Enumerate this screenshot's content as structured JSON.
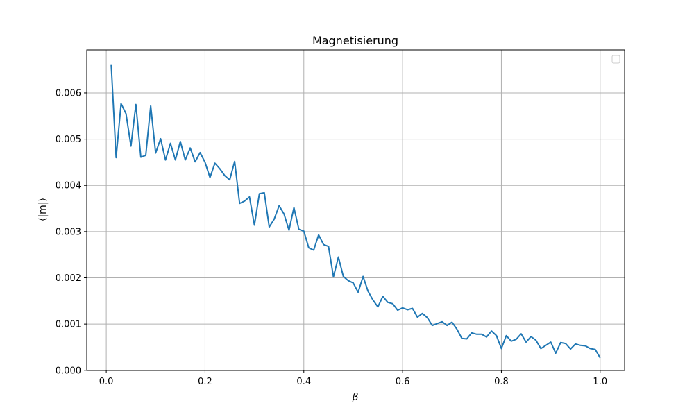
{
  "chart_data": {
    "type": "line",
    "title": "Magnetisierung",
    "xlabel": "β",
    "ylabel": "⟨|m|⟩",
    "xlim": [
      -0.0395,
      1.0495
    ],
    "ylim": [
      -3.5e-06,
      0.00693
    ],
    "xticks": [
      0.0,
      0.2,
      0.4,
      0.6,
      0.8,
      1.0
    ],
    "xtick_labels": [
      "0.0",
      "0.2",
      "0.4",
      "0.6",
      "0.8",
      "1.0"
    ],
    "yticks": [
      0.0,
      0.001,
      0.002,
      0.003,
      0.004,
      0.005,
      0.006
    ],
    "ytick_labels": [
      "0.000",
      "0.001",
      "0.002",
      "0.003",
      "0.004",
      "0.005",
      "0.006"
    ],
    "grid": true,
    "legend": "top-right (empty)",
    "color": "#1f77b4",
    "series": [
      {
        "x": [
          0.01,
          0.02,
          0.03,
          0.04,
          0.05,
          0.06,
          0.07,
          0.08,
          0.09,
          0.1,
          0.11,
          0.12,
          0.13,
          0.14,
          0.15,
          0.16,
          0.17,
          0.18,
          0.19,
          0.2,
          0.21,
          0.22,
          0.23,
          0.24,
          0.25,
          0.26,
          0.27,
          0.28,
          0.29,
          0.3,
          0.31,
          0.32,
          0.33,
          0.34,
          0.35,
          0.36,
          0.37,
          0.38,
          0.39,
          0.4,
          0.41,
          0.42,
          0.43,
          0.44,
          0.45,
          0.46,
          0.47,
          0.48,
          0.49,
          0.5,
          0.51,
          0.52,
          0.53,
          0.54,
          0.55,
          0.56,
          0.57,
          0.58,
          0.59,
          0.6,
          0.61,
          0.62,
          0.63,
          0.64,
          0.65,
          0.66,
          0.67,
          0.68,
          0.69,
          0.7,
          0.71,
          0.72,
          0.73,
          0.74,
          0.75,
          0.76,
          0.77,
          0.78,
          0.79,
          0.8,
          0.81,
          0.82,
          0.83,
          0.84,
          0.85,
          0.86,
          0.87,
          0.88,
          0.89,
          0.9,
          0.91,
          0.92,
          0.93,
          0.94,
          0.95,
          0.96,
          0.97,
          0.98,
          0.99,
          1.0
        ],
        "values": [
          0.00662,
          0.0046,
          0.00577,
          0.00555,
          0.00485,
          0.00575,
          0.00461,
          0.00465,
          0.00572,
          0.0047,
          0.00501,
          0.00455,
          0.00491,
          0.00455,
          0.00495,
          0.00455,
          0.00481,
          0.00451,
          0.00471,
          0.0045,
          0.00417,
          0.00448,
          0.00436,
          0.00421,
          0.00412,
          0.00452,
          0.00361,
          0.00366,
          0.00375,
          0.00314,
          0.00382,
          0.00384,
          0.0031,
          0.00327,
          0.00356,
          0.00338,
          0.00303,
          0.00352,
          0.00305,
          0.00301,
          0.00265,
          0.0026,
          0.00293,
          0.00272,
          0.00268,
          0.00202,
          0.00245,
          0.00203,
          0.00194,
          0.00189,
          0.00169,
          0.00203,
          0.00171,
          0.00152,
          0.00137,
          0.0016,
          0.00147,
          0.00144,
          0.0013,
          0.00135,
          0.00131,
          0.00134,
          0.00115,
          0.00123,
          0.00114,
          0.00097,
          0.00101,
          0.00105,
          0.00097,
          0.00104,
          0.00089,
          0.00069,
          0.00068,
          0.00081,
          0.00078,
          0.00078,
          0.00072,
          0.00085,
          0.00075,
          0.00047,
          0.00075,
          0.00063,
          0.00067,
          0.00079,
          0.00061,
          0.00073,
          0.00065,
          0.00047,
          0.00054,
          0.00061,
          0.00037,
          0.0006,
          0.00058,
          0.00046,
          0.00057,
          0.00054,
          0.00053,
          0.00047,
          0.00045,
          0.00027
        ]
      }
    ]
  }
}
